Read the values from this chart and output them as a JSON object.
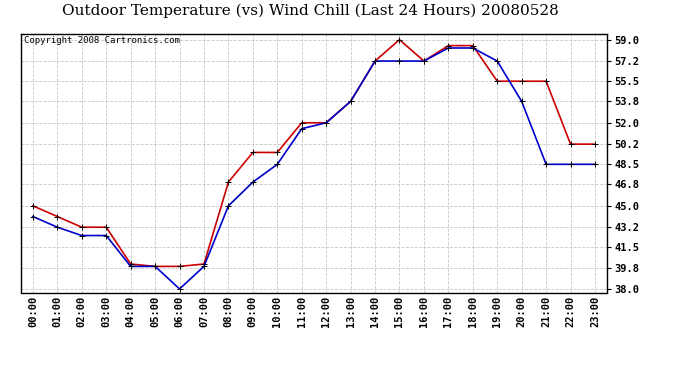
{
  "title": "Outdoor Temperature (vs) Wind Chill (Last 24 Hours) 20080528",
  "copyright": "Copyright 2008 Cartronics.com",
  "hours": [
    "00:00",
    "01:00",
    "02:00",
    "03:00",
    "04:00",
    "05:00",
    "06:00",
    "07:00",
    "08:00",
    "09:00",
    "10:00",
    "11:00",
    "12:00",
    "13:00",
    "14:00",
    "15:00",
    "16:00",
    "17:00",
    "18:00",
    "19:00",
    "20:00",
    "21:00",
    "22:00",
    "23:00"
  ],
  "temp": [
    45.0,
    44.1,
    43.2,
    43.2,
    40.1,
    39.9,
    39.9,
    40.1,
    47.0,
    49.5,
    49.5,
    52.0,
    52.0,
    53.8,
    57.2,
    59.0,
    57.2,
    58.5,
    58.5,
    55.5,
    55.5,
    55.5,
    50.2,
    50.2
  ],
  "wind_chill": [
    44.1,
    43.2,
    42.5,
    42.5,
    39.9,
    39.9,
    38.0,
    39.9,
    45.0,
    47.0,
    48.5,
    51.5,
    52.0,
    53.8,
    57.2,
    57.2,
    57.2,
    58.3,
    58.3,
    57.2,
    53.8,
    48.5,
    48.5,
    48.5
  ],
  "temp_color": "#cc0000",
  "wind_chill_color": "#0000cc",
  "yticks": [
    38.0,
    39.8,
    41.5,
    43.2,
    45.0,
    46.8,
    48.5,
    50.2,
    52.0,
    53.8,
    55.5,
    57.2,
    59.0
  ],
  "ymin": 38.0,
  "ymax": 59.0,
  "bg_color": "#ffffff",
  "grid_color": "#bbbbbb",
  "title_fontsize": 11,
  "copyright_fontsize": 6.5,
  "tick_fontsize": 7.5,
  "marker": "+",
  "marker_size": 5,
  "linewidth": 1.2
}
